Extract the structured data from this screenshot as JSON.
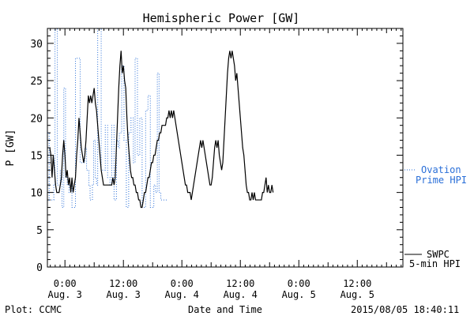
{
  "chart_data": {
    "type": "line",
    "title": "Hemispheric Power [GW]",
    "ylabel": "P [GW]",
    "xlabel": "Date and Time",
    "ylim": [
      0,
      32
    ],
    "xlim": [
      -0.15,
      2.89
    ],
    "x_units": "days from 2015-08-03 00:00 UT",
    "y_ticks": [
      "0",
      "5",
      "10",
      "15",
      "20",
      "25",
      "30"
    ],
    "x_ticks": [
      {
        "x": 0.0,
        "time": "0:00",
        "date": "Aug. 3"
      },
      {
        "x": 0.5,
        "time": "12:00",
        "date": "Aug. 3"
      },
      {
        "x": 1.0,
        "time": "0:00",
        "date": "Aug. 4"
      },
      {
        "x": 1.5,
        "time": "12:00",
        "date": "Aug. 4"
      },
      {
        "x": 2.0,
        "time": "0:00",
        "date": "Aug. 5"
      },
      {
        "x": 2.5,
        "time": "12:00",
        "date": "Aug. 5"
      }
    ],
    "grid": false,
    "footer_left": "Plot: CCMC",
    "footer_right": "2015/08/05 18:40:11",
    "series": [
      {
        "name": "SWPC 5-min HPI",
        "legend_lines": [
          "SWPC",
          "5-min HPI"
        ],
        "color": "#000000",
        "style": "solid",
        "points": [
          [
            -0.13,
            16
          ],
          [
            -0.12,
            15
          ],
          [
            -0.11,
            12
          ],
          [
            -0.1,
            15
          ],
          [
            -0.09,
            13
          ],
          [
            -0.08,
            11
          ],
          [
            -0.07,
            10
          ],
          [
            -0.06,
            10
          ],
          [
            -0.05,
            10
          ],
          [
            -0.04,
            11
          ],
          [
            -0.03,
            12
          ],
          [
            -0.02,
            15
          ],
          [
            -0.01,
            17
          ],
          [
            0.0,
            15
          ],
          [
            0.01,
            12
          ],
          [
            0.02,
            13
          ],
          [
            0.03,
            11
          ],
          [
            0.04,
            12
          ],
          [
            0.05,
            10
          ],
          [
            0.06,
            12
          ],
          [
            0.07,
            10
          ],
          [
            0.08,
            11
          ],
          [
            0.09,
            12
          ],
          [
            0.1,
            15
          ],
          [
            0.11,
            17
          ],
          [
            0.12,
            20
          ],
          [
            0.13,
            18
          ],
          [
            0.14,
            16
          ],
          [
            0.15,
            15
          ],
          [
            0.16,
            14
          ],
          [
            0.17,
            15
          ],
          [
            0.18,
            17
          ],
          [
            0.19,
            20
          ],
          [
            0.2,
            23
          ],
          [
            0.21,
            22
          ],
          [
            0.22,
            23
          ],
          [
            0.23,
            22
          ],
          [
            0.24,
            23
          ],
          [
            0.25,
            24
          ],
          [
            0.26,
            22
          ],
          [
            0.27,
            21
          ],
          [
            0.28,
            19
          ],
          [
            0.29,
            17
          ],
          [
            0.3,
            15
          ],
          [
            0.31,
            13
          ],
          [
            0.32,
            12
          ],
          [
            0.33,
            11
          ],
          [
            0.34,
            11
          ],
          [
            0.35,
            11
          ],
          [
            0.36,
            11
          ],
          [
            0.37,
            11
          ],
          [
            0.38,
            11
          ],
          [
            0.39,
            11
          ],
          [
            0.4,
            11
          ],
          [
            0.41,
            12
          ],
          [
            0.42,
            11
          ],
          [
            0.43,
            12
          ],
          [
            0.44,
            16
          ],
          [
            0.45,
            20
          ],
          [
            0.46,
            24
          ],
          [
            0.47,
            27
          ],
          [
            0.48,
            29
          ],
          [
            0.49,
            26
          ],
          [
            0.5,
            27
          ],
          [
            0.51,
            25
          ],
          [
            0.52,
            24
          ],
          [
            0.53,
            20
          ],
          [
            0.54,
            17
          ],
          [
            0.55,
            15
          ],
          [
            0.56,
            13
          ],
          [
            0.57,
            12
          ],
          [
            0.58,
            12
          ],
          [
            0.59,
            11
          ],
          [
            0.6,
            11
          ],
          [
            0.61,
            10
          ],
          [
            0.62,
            10
          ],
          [
            0.63,
            9
          ],
          [
            0.64,
            9
          ],
          [
            0.65,
            8
          ],
          [
            0.66,
            8
          ],
          [
            0.67,
            9
          ],
          [
            0.68,
            10
          ],
          [
            0.69,
            10
          ],
          [
            0.7,
            11
          ],
          [
            0.71,
            12
          ],
          [
            0.72,
            12
          ],
          [
            0.73,
            13
          ],
          [
            0.74,
            14
          ],
          [
            0.75,
            14
          ],
          [
            0.76,
            15
          ],
          [
            0.77,
            15
          ],
          [
            0.78,
            16
          ],
          [
            0.79,
            17
          ],
          [
            0.8,
            17
          ],
          [
            0.81,
            18
          ],
          [
            0.82,
            18
          ],
          [
            0.83,
            19
          ],
          [
            0.84,
            19
          ],
          [
            0.85,
            19
          ],
          [
            0.86,
            19
          ],
          [
            0.87,
            20
          ],
          [
            0.88,
            20
          ],
          [
            0.89,
            21
          ],
          [
            0.9,
            20
          ],
          [
            0.91,
            21
          ],
          [
            0.92,
            20
          ],
          [
            0.93,
            21
          ],
          [
            0.94,
            20
          ],
          [
            0.95,
            19
          ],
          [
            0.96,
            18
          ],
          [
            0.97,
            17
          ],
          [
            0.98,
            16
          ],
          [
            0.99,
            15
          ],
          [
            1.0,
            14
          ],
          [
            1.01,
            13
          ],
          [
            1.02,
            12
          ],
          [
            1.03,
            11
          ],
          [
            1.04,
            11
          ],
          [
            1.05,
            10
          ],
          [
            1.06,
            10
          ],
          [
            1.07,
            10
          ],
          [
            1.08,
            9
          ],
          [
            1.09,
            10
          ],
          [
            1.1,
            11
          ],
          [
            1.11,
            12
          ],
          [
            1.12,
            13
          ],
          [
            1.13,
            14
          ],
          [
            1.14,
            15
          ],
          [
            1.15,
            16
          ],
          [
            1.16,
            17
          ],
          [
            1.17,
            16
          ],
          [
            1.18,
            17
          ],
          [
            1.19,
            16
          ],
          [
            1.2,
            15
          ],
          [
            1.21,
            14
          ],
          [
            1.22,
            13
          ],
          [
            1.23,
            12
          ],
          [
            1.24,
            11
          ],
          [
            1.25,
            11
          ],
          [
            1.26,
            12
          ],
          [
            1.27,
            14
          ],
          [
            1.28,
            16
          ],
          [
            1.29,
            17
          ],
          [
            1.3,
            16
          ],
          [
            1.31,
            17
          ],
          [
            1.32,
            15
          ],
          [
            1.33,
            14
          ],
          [
            1.34,
            13
          ],
          [
            1.35,
            14
          ],
          [
            1.36,
            17
          ],
          [
            1.37,
            20
          ],
          [
            1.38,
            23
          ],
          [
            1.39,
            26
          ],
          [
            1.4,
            28
          ],
          [
            1.41,
            29
          ],
          [
            1.42,
            28
          ],
          [
            1.43,
            29
          ],
          [
            1.44,
            28
          ],
          [
            1.45,
            27
          ],
          [
            1.46,
            25
          ],
          [
            1.47,
            26
          ],
          [
            1.48,
            24
          ],
          [
            1.49,
            22
          ],
          [
            1.5,
            20
          ],
          [
            1.51,
            18
          ],
          [
            1.52,
            16
          ],
          [
            1.53,
            15
          ],
          [
            1.54,
            13
          ],
          [
            1.55,
            11
          ],
          [
            1.56,
            10
          ],
          [
            1.57,
            10
          ],
          [
            1.58,
            9
          ],
          [
            1.59,
            9
          ],
          [
            1.6,
            10
          ],
          [
            1.61,
            9
          ],
          [
            1.62,
            10
          ],
          [
            1.63,
            9
          ],
          [
            1.64,
            9
          ],
          [
            1.65,
            9
          ],
          [
            1.66,
            9
          ],
          [
            1.67,
            9
          ],
          [
            1.68,
            9
          ],
          [
            1.69,
            10
          ],
          [
            1.7,
            10
          ],
          [
            1.71,
            11
          ],
          [
            1.72,
            12
          ],
          [
            1.73,
            10
          ],
          [
            1.74,
            11
          ],
          [
            1.75,
            10
          ],
          [
            1.76,
            10
          ],
          [
            1.77,
            11
          ],
          [
            1.78,
            10
          ]
        ]
      },
      {
        "name": "Ovation Prime HPI",
        "legend_lines": [
          "Ovation",
          "Prime HPI"
        ],
        "color": "#2a6fd8",
        "style": "dotted-step",
        "points": [
          [
            -0.15,
            18
          ],
          [
            -0.135,
            9
          ],
          [
            -0.095,
            11
          ],
          [
            -0.085,
            32
          ],
          [
            -0.065,
            11
          ],
          [
            -0.04,
            13
          ],
          [
            -0.025,
            8
          ],
          [
            -0.01,
            24
          ],
          [
            0.005,
            12
          ],
          [
            0.02,
            11
          ],
          [
            0.035,
            10
          ],
          [
            0.05,
            11
          ],
          [
            0.06,
            8
          ],
          [
            0.09,
            28
          ],
          [
            0.13,
            14
          ],
          [
            0.17,
            16
          ],
          [
            0.185,
            13
          ],
          [
            0.205,
            11
          ],
          [
            0.215,
            9
          ],
          [
            0.235,
            11
          ],
          [
            0.245,
            17
          ],
          [
            0.26,
            12
          ],
          [
            0.27,
            11
          ],
          [
            0.28,
            32
          ],
          [
            0.31,
            13
          ],
          [
            0.345,
            19
          ],
          [
            0.365,
            12
          ],
          [
            0.385,
            11
          ],
          [
            0.4,
            19
          ],
          [
            0.42,
            9
          ],
          [
            0.44,
            17
          ],
          [
            0.455,
            16
          ],
          [
            0.465,
            18
          ],
          [
            0.485,
            27
          ],
          [
            0.505,
            17
          ],
          [
            0.525,
            8
          ],
          [
            0.545,
            18
          ],
          [
            0.565,
            20
          ],
          [
            0.585,
            14
          ],
          [
            0.6,
            28
          ],
          [
            0.62,
            15
          ],
          [
            0.64,
            20
          ],
          [
            0.66,
            8
          ],
          [
            0.69,
            21
          ],
          [
            0.71,
            23
          ],
          [
            0.73,
            8
          ],
          [
            0.76,
            11
          ],
          [
            0.775,
            10
          ],
          [
            0.79,
            26
          ],
          [
            0.805,
            10
          ],
          [
            0.82,
            9
          ]
        ]
      }
    ]
  }
}
